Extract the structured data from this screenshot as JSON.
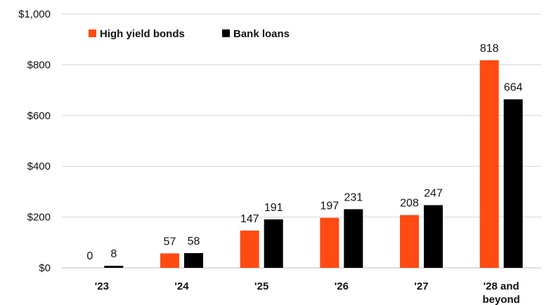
{
  "chart_data": {
    "type": "bar",
    "categories": [
      "'23",
      "'24",
      "'25",
      "'26",
      "'27",
      "'28 and beyond"
    ],
    "series": [
      {
        "name": "High yield bonds",
        "values": [
          0,
          57,
          147,
          197,
          208,
          818
        ],
        "color": "#ff4a12"
      },
      {
        "name": "Bank loans",
        "values": [
          8,
          58,
          191,
          231,
          247,
          664
        ],
        "color": "#000000"
      }
    ],
    "value_labels": [
      [
        "0",
        "57",
        "147",
        "197",
        "208",
        "818"
      ],
      [
        "8",
        "58",
        "191",
        "231",
        "247",
        "664"
      ]
    ],
    "y_ticks": [
      0,
      200,
      400,
      600,
      800,
      1000
    ],
    "y_tick_labels": [
      "$0",
      "$200",
      "$400",
      "$600",
      "$800",
      "$1,000"
    ],
    "ylim": [
      0,
      1000
    ],
    "grid": true,
    "legend_position": "top-left"
  }
}
